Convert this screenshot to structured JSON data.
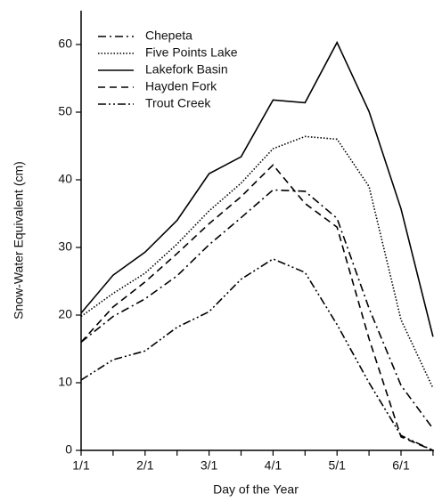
{
  "chart_data": {
    "type": "line",
    "x_label": "Day of the Year",
    "y_label": "Snow-Water Equivalent (cm)",
    "categories": [
      "1/1",
      null,
      "2/1",
      null,
      "3/1",
      null,
      "4/1",
      null,
      "5/1",
      null,
      "6/1",
      null
    ],
    "ylim": [
      0,
      65
    ],
    "yticks": [
      0,
      10,
      20,
      30,
      40,
      50,
      60
    ],
    "legend": "upper-left",
    "series": [
      {
        "name": "Chepeta",
        "color": "#000000",
        "dash": "9,4,2,4",
        "values": [
          16,
          19.8,
          22.4,
          25.8,
          30.4,
          34.4,
          38.5,
          38.3,
          34.3,
          21,
          9.6,
          3.2
        ]
      },
      {
        "name": "Five Points Lake",
        "color": "#000000",
        "dash": "1.5,2",
        "values": [
          19.8,
          23.2,
          26.2,
          30.5,
          35.4,
          39.5,
          44.6,
          46.4,
          46,
          39,
          19.3,
          9.2
        ]
      },
      {
        "name": "Lakefork Basin",
        "color": "#000000",
        "dash": "none",
        "values": [
          20.3,
          25.9,
          29.3,
          34,
          40.9,
          43.4,
          51.8,
          51.4,
          60.3,
          50.1,
          35.7,
          16.8
        ]
      },
      {
        "name": "Hayden Fork",
        "color": "#000000",
        "dash": "8,5",
        "values": [
          16,
          21.2,
          24.9,
          29.1,
          33.5,
          37.5,
          42.2,
          36.5,
          33,
          16.5,
          2,
          0
        ]
      },
      {
        "name": "Trout Creek",
        "color": "#000000",
        "dash": "9,3,2,3,2,3",
        "values": [
          10.4,
          13.4,
          14.7,
          18.2,
          20.5,
          25.3,
          28.3,
          26.3,
          18.6,
          10,
          2.2,
          0
        ]
      }
    ]
  }
}
